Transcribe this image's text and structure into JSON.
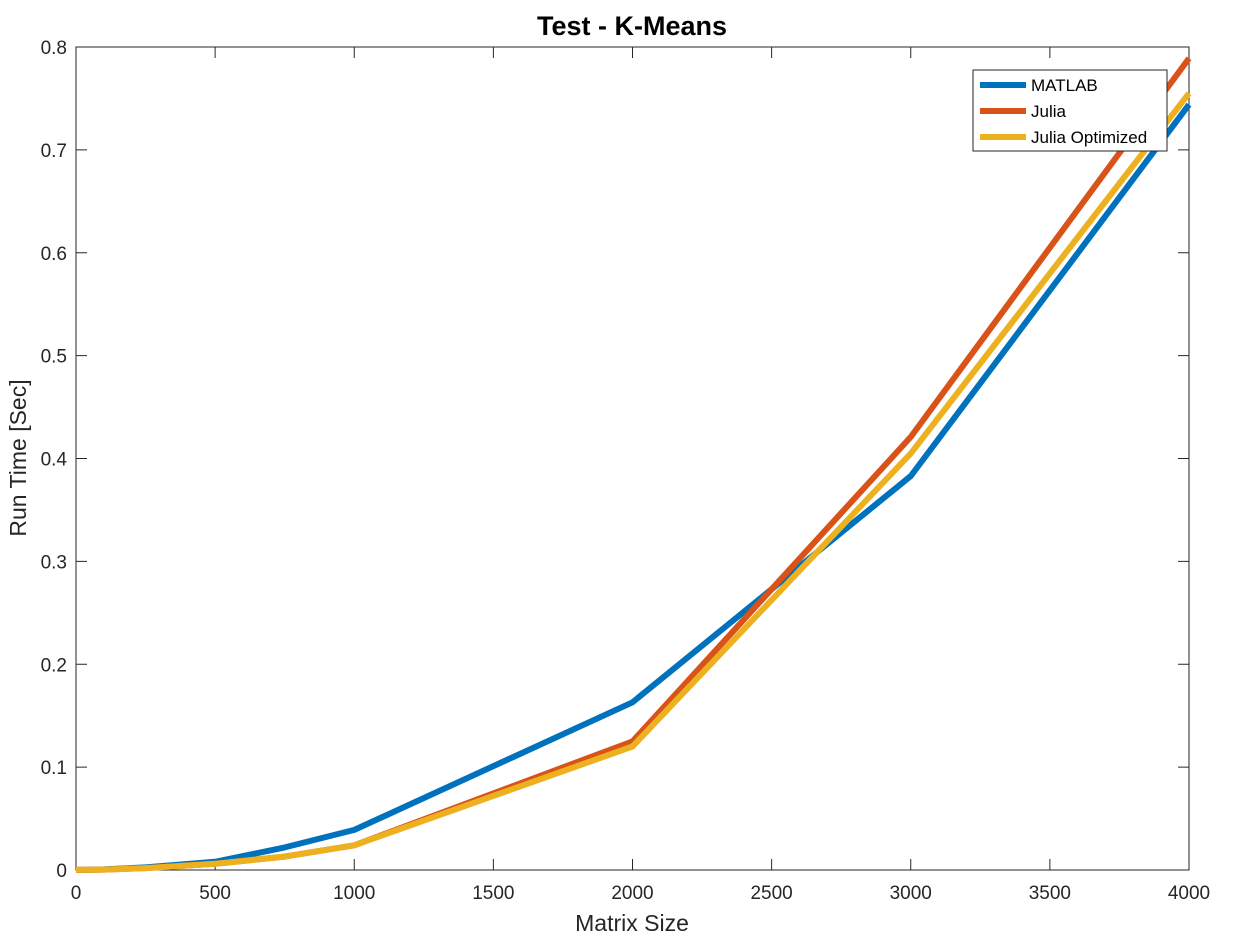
{
  "chart_data": {
    "type": "line",
    "title": "Test - K-Means",
    "xlabel": "Matrix Size",
    "ylabel": "Run Time  [Sec]",
    "xlim": [
      0,
      4000
    ],
    "ylim": [
      0,
      0.8
    ],
    "xticks": [
      0,
      500,
      1000,
      1500,
      2000,
      2500,
      3000,
      3500,
      4000
    ],
    "xtick_labels": [
      "0",
      "500",
      "1000",
      "1500",
      "2000",
      "2500",
      "3000",
      "3500",
      "4000"
    ],
    "yticks": [
      0,
      0.1,
      0.2,
      0.3,
      0.4,
      0.5,
      0.6,
      0.7,
      0.8
    ],
    "ytick_labels": [
      "0",
      "0.1",
      "0.2",
      "0.3",
      "0.4",
      "0.5",
      "0.6",
      "0.7",
      "0.8"
    ],
    "grid": false,
    "legend_position": "top-right",
    "x": [
      0,
      50,
      100,
      250,
      500,
      750,
      1000,
      2000,
      3000,
      4000
    ],
    "series": [
      {
        "name": "MATLAB",
        "color": "#0072BD",
        "values": [
          0.0001,
          0.0003,
          0.0006,
          0.0025,
          0.008,
          0.022,
          0.039,
          0.163,
          0.383,
          0.744
        ]
      },
      {
        "name": "Julia",
        "color": "#D95319",
        "values": [
          0.0001,
          0.0002,
          0.0004,
          0.0018,
          0.006,
          0.013,
          0.024,
          0.125,
          0.421,
          0.789
        ]
      },
      {
        "name": "Julia Optimized",
        "color": "#EDB120",
        "values": [
          0.0001,
          0.0002,
          0.0004,
          0.0018,
          0.006,
          0.013,
          0.024,
          0.12,
          0.405,
          0.755
        ]
      }
    ]
  }
}
